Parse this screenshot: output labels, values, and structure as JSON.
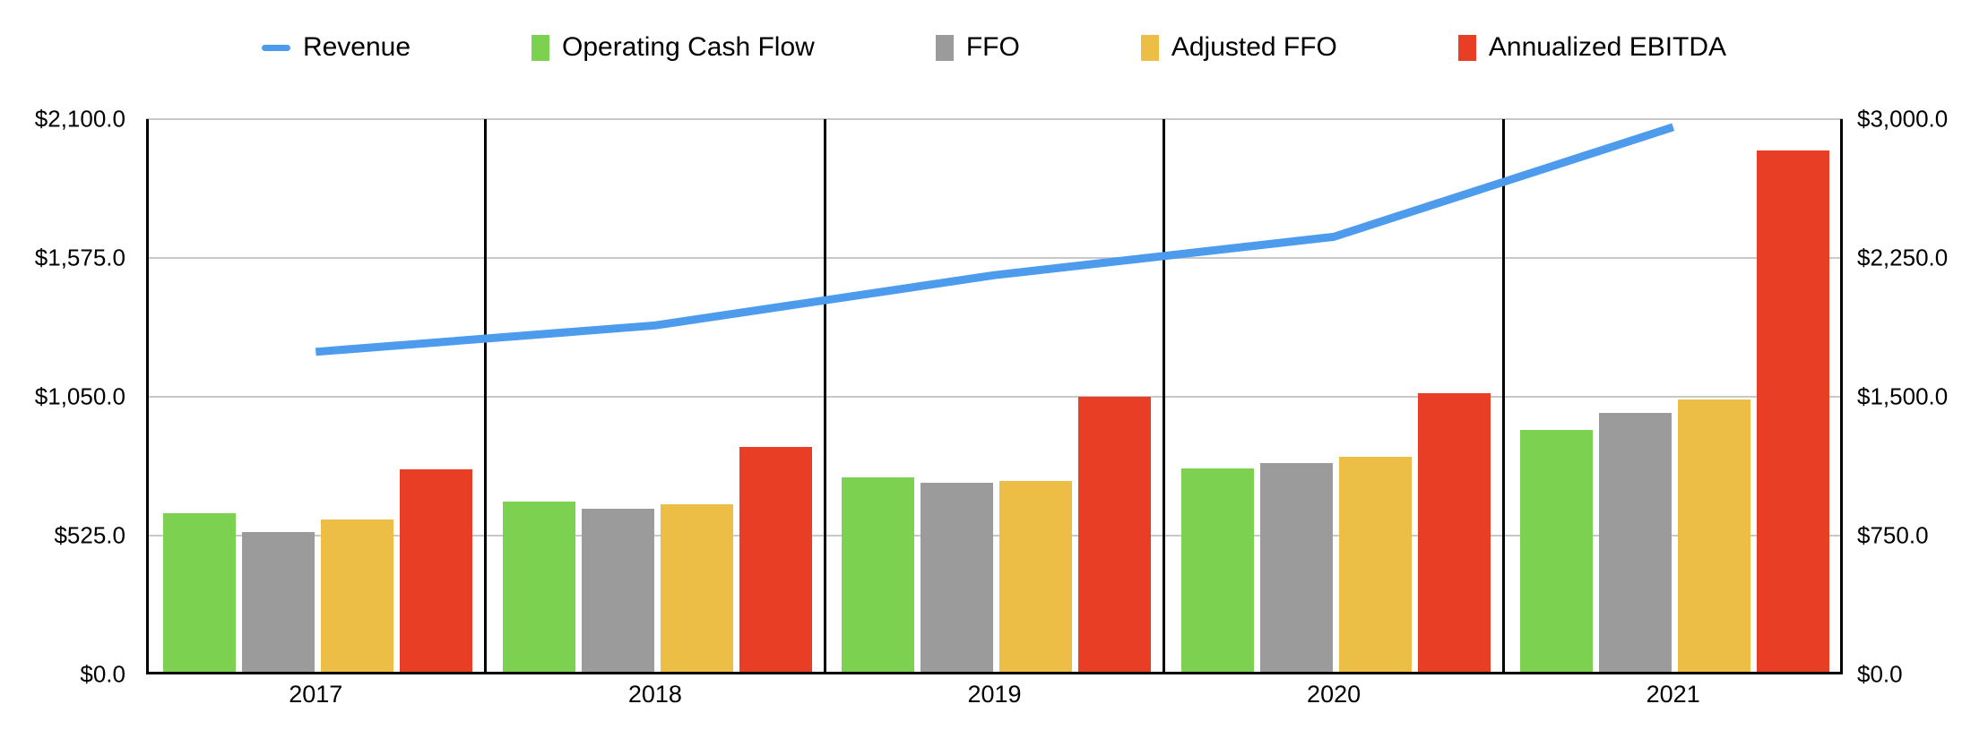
{
  "chart_data": {
    "type": "combo",
    "title": "",
    "categories": [
      "2017",
      "2018",
      "2019",
      "2020",
      "2021"
    ],
    "series": [
      {
        "name": "Revenue",
        "type": "line",
        "axis": "left",
        "color": "#4d9bec",
        "values": [
          1220,
          1320,
          1510,
          1655,
          2070
        ]
      },
      {
        "name": "Operating Cash Flow",
        "type": "bar",
        "axis": "left",
        "color": "#7cd250",
        "values": [
          610,
          655,
          745,
          780,
          925
        ]
      },
      {
        "name": "FFO",
        "type": "bar",
        "axis": "left",
        "color": "#9b9b9b",
        "values": [
          537,
          628,
          725,
          800,
          988
        ]
      },
      {
        "name": "Adjusted FFO",
        "type": "bar",
        "axis": "left",
        "color": "#edbe45",
        "values": [
          585,
          645,
          732,
          823,
          1040
        ]
      },
      {
        "name": "Annualized EBITDA",
        "type": "bar",
        "axis": "right",
        "color": "#e83e25",
        "values": [
          1110,
          1230,
          1500,
          1520,
          2830
        ]
      }
    ],
    "left_axis": {
      "range": [
        0,
        2100
      ],
      "tick_step": 525,
      "tick_labels": [
        "$0.0",
        "$525.0",
        "$1,050.0",
        "$1,575.0",
        "$2,100.0"
      ]
    },
    "right_axis": {
      "range": [
        0,
        3000
      ],
      "tick_step": 750,
      "tick_labels": [
        "$0.0",
        "$750.0",
        "$1,500.0",
        "$2,250.0",
        "$3,000.0"
      ]
    },
    "grid": true,
    "legend_position": "top",
    "category_separators": true
  },
  "colors": {
    "gridline": "#c8c8c8",
    "axis_line": "#000000",
    "background": "#ffffff",
    "text": "#000000"
  }
}
